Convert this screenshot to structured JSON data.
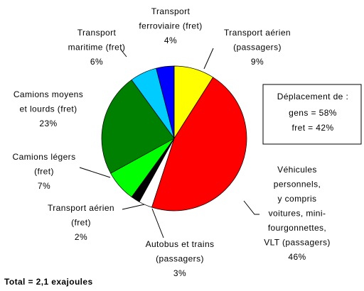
{
  "chart_data": {
    "type": "pie",
    "categories": [
      [
        "Transport aérien",
        "(passagers)"
      ],
      [
        "Véhicules",
        "personnels,",
        "y compris",
        "voitures, mini-",
        "fourgonnettes,",
        "VLT (passagers)"
      ],
      [
        "Autobus et trains",
        "(passagers)"
      ],
      [
        "Transport aérien",
        "(fret)"
      ],
      [
        "Camions légers",
        "(fret)"
      ],
      [
        "Camions moyens",
        "et lourds (fret)"
      ],
      [
        "Transport",
        "maritime (fret)"
      ],
      [
        "Transport",
        "ferroviaire (fret)"
      ]
    ],
    "values": [
      9,
      46,
      3,
      2,
      7,
      23,
      6,
      4
    ],
    "value_labels": [
      "9%",
      "46%",
      "3%",
      "2%",
      "7%",
      "23%",
      "6%",
      "4%"
    ],
    "colors": [
      "#ffff00",
      "#ff0000",
      "#ffffff",
      "#000000",
      "#00ff00",
      "#008000",
      "#00ccff",
      "#0000ff"
    ],
    "annotations": [
      "Déplacement de :",
      "gens = 58%",
      "fret = 42%"
    ],
    "footer": "Total = 2,1 exajoules"
  }
}
